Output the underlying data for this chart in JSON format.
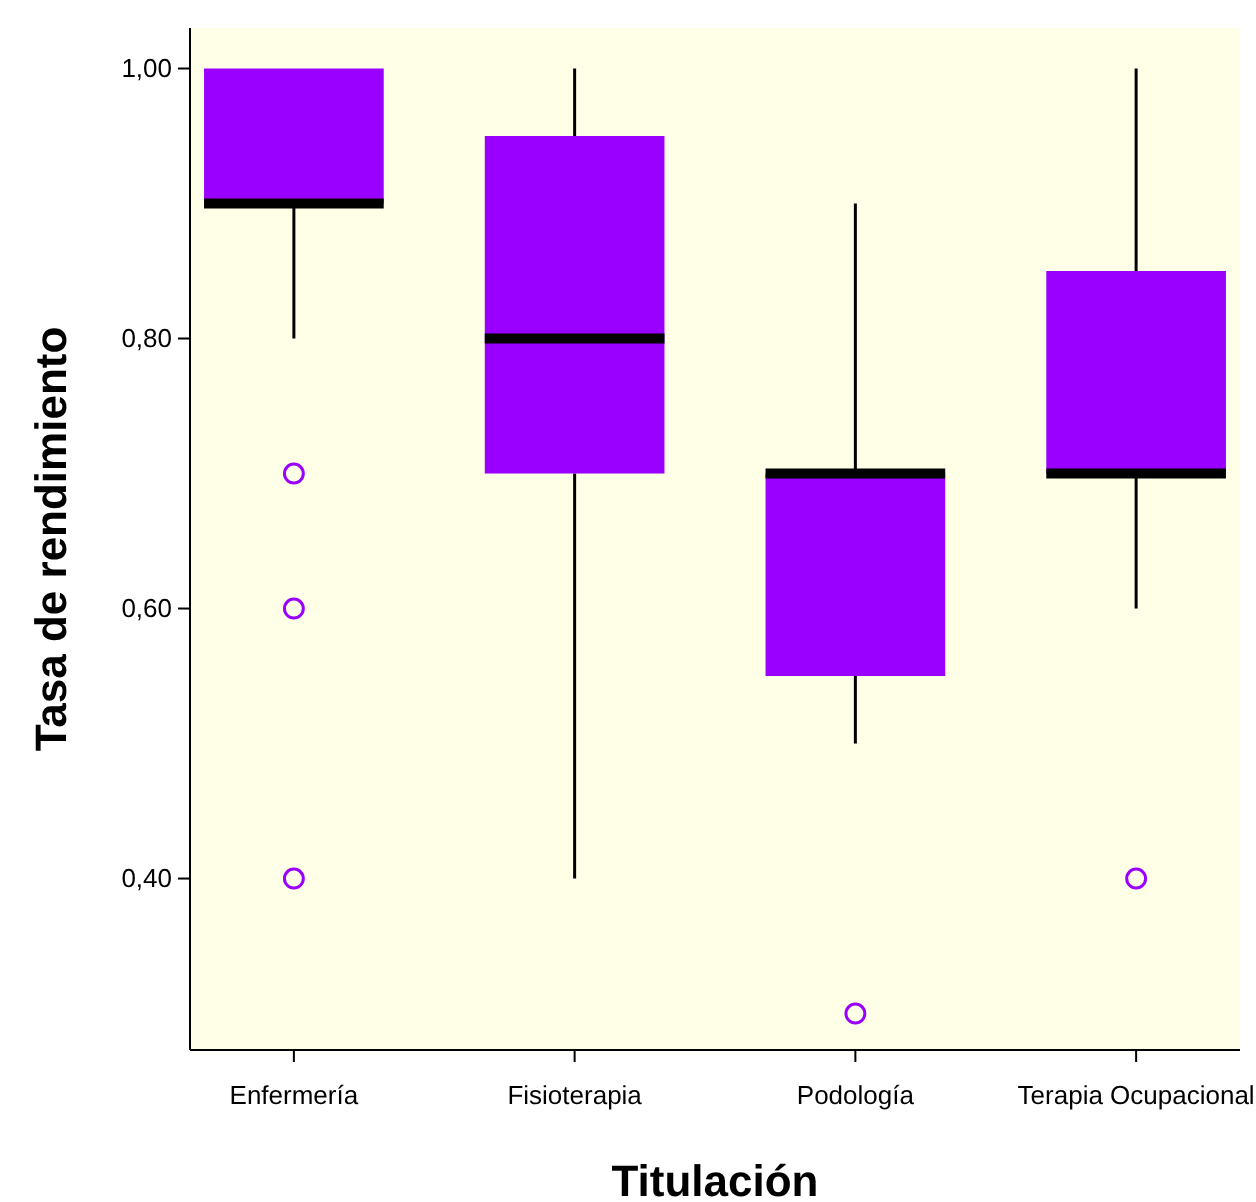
{
  "chart_data": {
    "type": "box",
    "xlabel": "Titulación",
    "ylabel": "Tasa de rendimiento",
    "categories": [
      "Enfermería",
      "Fisioterapia",
      "Podología",
      "Terapia Ocupacional"
    ],
    "color": "#9900ff",
    "marker": "circle",
    "boxes": [
      {
        "low": 0.8,
        "q1": 0.9,
        "median": 0.9,
        "q3": 1.0,
        "high": 1.0,
        "outliers": [
          0.7,
          0.6,
          0.4
        ]
      },
      {
        "low": 0.4,
        "q1": 0.7,
        "median": 0.8,
        "q3": 0.95,
        "high": 1.0
      },
      {
        "low": 0.5,
        "q1": 0.55,
        "median": 0.7,
        "q3": 0.7,
        "high": 0.9,
        "outliers": [
          0.3
        ]
      },
      {
        "low": 0.6,
        "q1": 0.7,
        "median": 0.7,
        "q3": 0.85,
        "high": 1.0,
        "outliers": [
          0.4
        ]
      }
    ],
    "ylim": [
      0.273,
      1.03
    ],
    "yticks": [
      {
        "value": 0.4,
        "label": "0,40"
      },
      {
        "value": 0.6,
        "label": "0,60"
      },
      {
        "value": 0.8,
        "label": "0,80"
      },
      {
        "value": 1.0,
        "label": "1,00"
      }
    ]
  }
}
